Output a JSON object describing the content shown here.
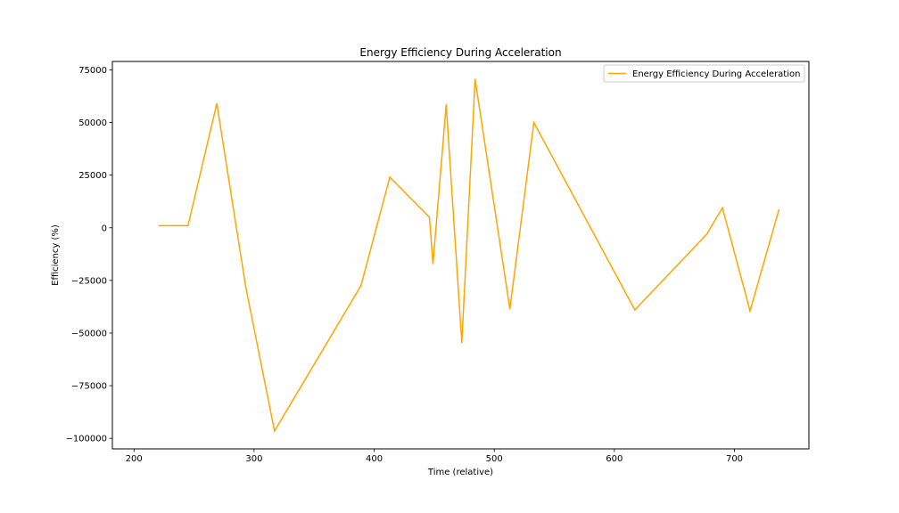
{
  "chart_data": {
    "type": "line",
    "title": "Energy Efficiency During Acceleration",
    "xlabel": "Time (relative)",
    "ylabel": "Efficiency (%)",
    "xlim": [
      182,
      762
    ],
    "ylim": [
      -105000,
      79000
    ],
    "xticks": [
      200,
      300,
      400,
      500,
      600,
      700
    ],
    "yticks": [
      75000,
      50000,
      25000,
      0,
      -25000,
      -50000,
      -75000,
      -100000
    ],
    "grid": false,
    "legend_position": "top-right",
    "series": [
      {
        "name": "Energy Efficiency During Acceleration",
        "color": "#ffa500",
        "x": [
          221,
          245,
          269,
          293,
          317,
          389,
          413,
          446,
          449,
          460,
          473,
          484,
          513,
          533,
          617,
          677,
          690,
          713,
          737
        ],
        "y": [
          1000,
          1000,
          59000,
          -28000,
          -96500,
          -27500,
          24000,
          5000,
          -17000,
          58500,
          -54500,
          70500,
          -38500,
          50000,
          -39000,
          -3000,
          9500,
          -39500,
          8500
        ]
      }
    ]
  }
}
